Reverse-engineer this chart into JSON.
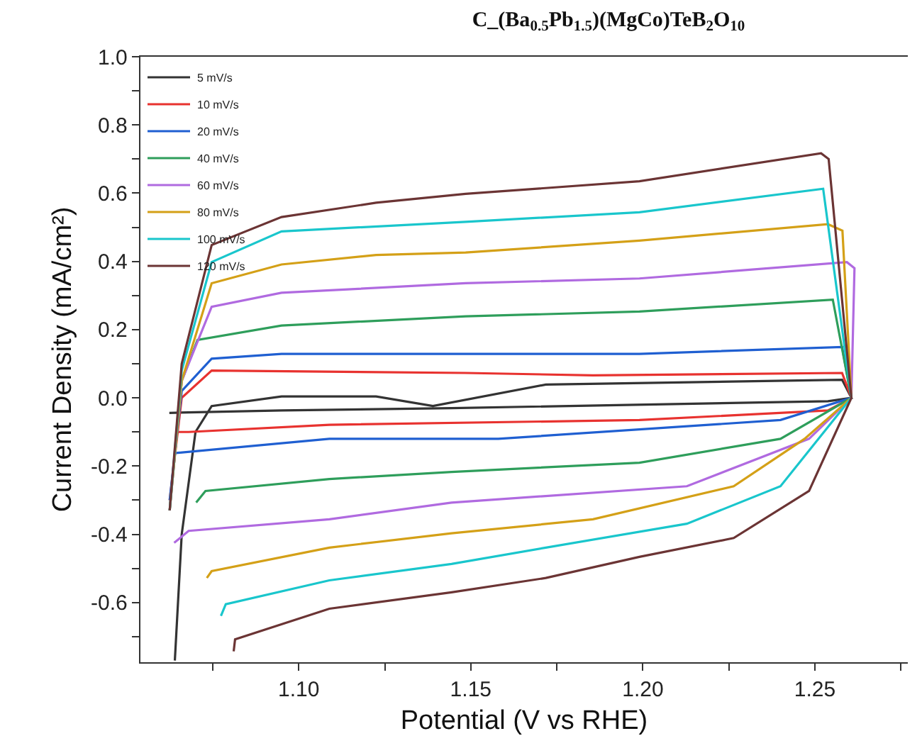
{
  "chart_data": {
    "type": "line",
    "title": "C_(Ba$_{0.5}$Pb$_{1.5}$)(MgCo)TeB$_{2}$O$_{10}$",
    "xlabel": "Potential (V vs RHE)",
    "ylabel": "Current Density (mA/cm²)",
    "xlim": [
      1.054,
      1.277
    ],
    "ylim": [
      -0.775,
      1.0
    ],
    "xticks": [
      {
        "value": 1.075,
        "label": null
      },
      {
        "value": 1.1,
        "label": "1.10"
      },
      {
        "value": 1.125,
        "label": null
      },
      {
        "value": 1.15,
        "label": "1.15"
      },
      {
        "value": 1.175,
        "label": null
      },
      {
        "value": 1.2,
        "label": "1.20"
      },
      {
        "value": 1.225,
        "label": null
      },
      {
        "value": 1.25,
        "label": "1.25"
      },
      {
        "value": 1.275,
        "label": null
      }
    ],
    "yticks": [
      {
        "value": -0.7,
        "label": null
      },
      {
        "value": -0.6,
        "label": "-0.6"
      },
      {
        "value": -0.5,
        "label": null
      },
      {
        "value": -0.4,
        "label": "-0.4"
      },
      {
        "value": -0.3,
        "label": null
      },
      {
        "value": -0.2,
        "label": "-0.2"
      },
      {
        "value": -0.1,
        "label": null
      },
      {
        "value": 0.0,
        "label": "0.0"
      },
      {
        "value": 0.1,
        "label": null
      },
      {
        "value": 0.2,
        "label": "0.2"
      },
      {
        "value": 0.3,
        "label": null
      },
      {
        "value": 0.4,
        "label": "0.4"
      },
      {
        "value": 0.5,
        "label": null
      },
      {
        "value": 0.6,
        "label": "0.6"
      },
      {
        "value": 0.7,
        "label": null
      },
      {
        "value": 0.8,
        "label": "0.8"
      },
      {
        "value": 0.9,
        "label": null
      },
      {
        "value": 1.0,
        "label": "1.0"
      }
    ],
    "legend": "top left",
    "marker": "none",
    "line_style": "solid",
    "series": [
      {
        "name": "5 mV/s",
        "color": "#333333",
        "x": [
          1.064,
          1.066,
          1.07,
          1.0747,
          1.095,
          1.1225,
          1.139,
          1.1718,
          1.2579,
          1.2606,
          1.2538,
          1.1444,
          1.095,
          1.0624
        ],
        "values": [
          -0.77,
          -0.4,
          -0.1,
          -0.024,
          0.004,
          0.004,
          -0.024,
          0.039,
          0.053,
          0.0,
          -0.01,
          -0.03,
          -0.037,
          -0.044
        ]
      },
      {
        "name": "10 mV/s",
        "color": "#e8322f",
        "x": [
          1.0625,
          1.066,
          1.0747,
          1.1485,
          1.1855,
          1.2579,
          1.2606,
          1.2538,
          1.199,
          1.1089,
          1.068,
          1.065
        ],
        "values": [
          -0.3,
          0.0,
          0.08,
          0.073,
          0.066,
          0.073,
          0.0,
          -0.037,
          -0.065,
          -0.079,
          -0.1,
          -0.1
        ]
      },
      {
        "name": "20 mV/s",
        "color": "#1f5fd1",
        "x": [
          1.0625,
          1.066,
          1.0747,
          1.095,
          1.199,
          1.2579,
          1.2606,
          1.24,
          1.158,
          1.1089,
          1.0638
        ],
        "values": [
          -0.3,
          0.02,
          0.115,
          0.129,
          0.129,
          0.149,
          0.0,
          -0.065,
          -0.12,
          -0.12,
          -0.162
        ]
      },
      {
        "name": "40 mV/s",
        "color": "#2e9e5b",
        "x": [
          1.0625,
          1.066,
          1.0706,
          1.095,
          1.1485,
          1.199,
          1.2552,
          1.2606,
          1.24,
          1.199,
          1.1444,
          1.1089,
          1.0729,
          1.0702
        ],
        "values": [
          -0.33,
          0.05,
          0.17,
          0.212,
          0.239,
          0.253,
          0.288,
          0.0,
          -0.12,
          -0.19,
          -0.217,
          -0.238,
          -0.273,
          -0.307
        ]
      },
      {
        "name": "60 mV/s",
        "color": "#b06ae0",
        "x": [
          1.0625,
          1.066,
          1.0747,
          1.095,
          1.1485,
          1.199,
          1.2593,
          1.2615,
          1.2606,
          1.2483,
          1.2128,
          1.1444,
          1.1089,
          1.068,
          1.0638
        ],
        "values": [
          -0.33,
          0.05,
          0.267,
          0.308,
          0.336,
          0.35,
          0.398,
          0.38,
          0.0,
          -0.12,
          -0.259,
          -0.307,
          -0.356,
          -0.39,
          -0.425
        ]
      },
      {
        "name": "80 mV/s",
        "color": "#d4a017",
        "x": [
          1.0625,
          1.066,
          1.0747,
          1.095,
          1.1225,
          1.1485,
          1.199,
          1.2538,
          1.258,
          1.2606,
          1.247,
          1.2264,
          1.1855,
          1.1444,
          1.1089,
          1.0747,
          1.0733
        ],
        "values": [
          -0.33,
          0.05,
          0.336,
          0.391,
          0.419,
          0.426,
          0.461,
          0.509,
          0.49,
          0.0,
          -0.12,
          -0.259,
          -0.356,
          -0.397,
          -0.439,
          -0.508,
          -0.528
        ]
      },
      {
        "name": "100 mV/s",
        "color": "#19c6cc",
        "x": [
          1.0625,
          1.066,
          1.0747,
          1.095,
          1.1485,
          1.199,
          1.2524,
          1.2606,
          1.24,
          1.2128,
          1.1718,
          1.1444,
          1.1089,
          1.0788,
          1.0774
        ],
        "values": [
          -0.33,
          0.08,
          0.398,
          0.488,
          0.516,
          0.544,
          0.613,
          0.0,
          -0.259,
          -0.369,
          -0.439,
          -0.487,
          -0.535,
          -0.605,
          -0.639
        ]
      },
      {
        "name": "120 mV/s",
        "color": "#6b3434",
        "x": [
          1.0625,
          1.066,
          1.0747,
          1.095,
          1.1225,
          1.1485,
          1.199,
          1.2518,
          1.254,
          1.2606,
          1.2483,
          1.2264,
          1.199,
          1.1718,
          1.1444,
          1.1089,
          1.0815,
          1.0811
        ],
        "values": [
          -0.33,
          0.1,
          0.448,
          0.53,
          0.572,
          0.598,
          0.635,
          0.717,
          0.7,
          0.0,
          -0.273,
          -0.411,
          -0.466,
          -0.528,
          -0.57,
          -0.618,
          -0.708,
          -0.743
        ]
      }
    ]
  }
}
